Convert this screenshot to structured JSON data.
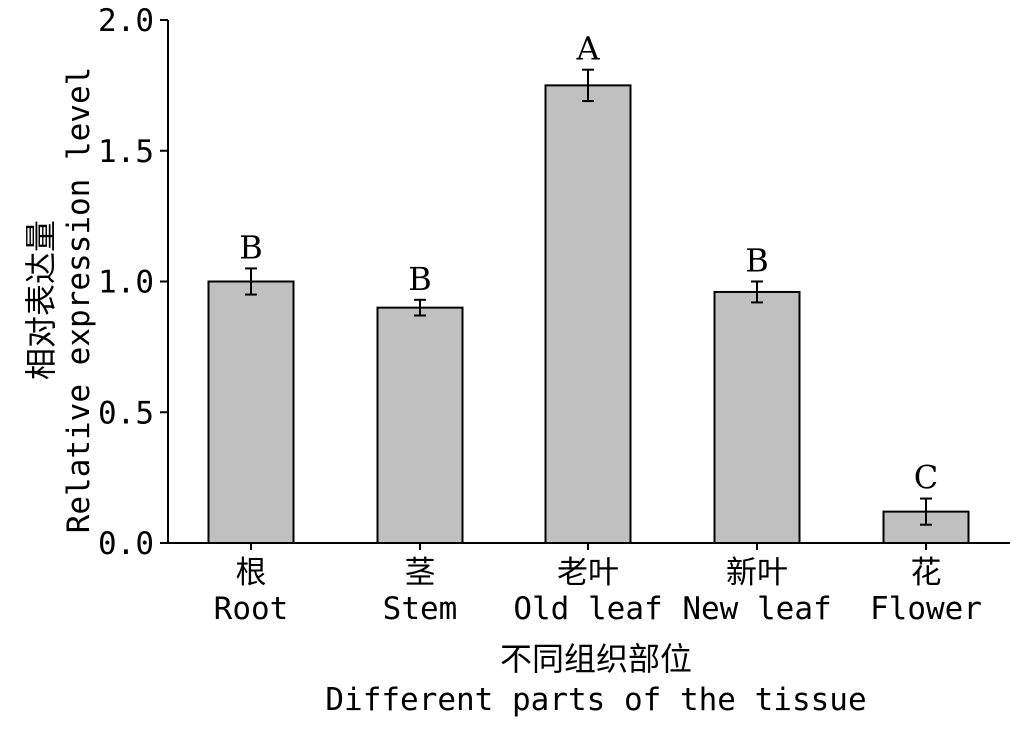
{
  "chart_data": {
    "type": "bar",
    "categories": [
      {
        "cn": "根",
        "en": "Root"
      },
      {
        "cn": "茎",
        "en": "Stem"
      },
      {
        "cn": "老叶",
        "en": "Old leaf"
      },
      {
        "cn": "新叶",
        "en": "New leaf"
      },
      {
        "cn": "花",
        "en": "Flower"
      }
    ],
    "values": [
      1.0,
      0.9,
      1.75,
      0.96,
      0.12
    ],
    "errors": [
      0.05,
      0.03,
      0.06,
      0.04,
      0.05
    ],
    "letters": [
      "B",
      "B",
      "A",
      "B",
      "C"
    ],
    "xlabel_cn": "不同组织部位",
    "xlabel_en": "Different parts of the tissue",
    "ylabel_cn": "相对表达量",
    "ylabel_en": "Relative expression level",
    "ylim": [
      0,
      2.0
    ],
    "yticks": [
      0.0,
      0.5,
      1.0,
      1.5,
      2.0
    ],
    "ytick_labels": [
      "0.0",
      "0.5",
      "1.0",
      "1.5",
      "2.0"
    ],
    "bar_color": "#c0c0c0",
    "edge_color": "#000000",
    "grid": false,
    "legend": "none"
  }
}
